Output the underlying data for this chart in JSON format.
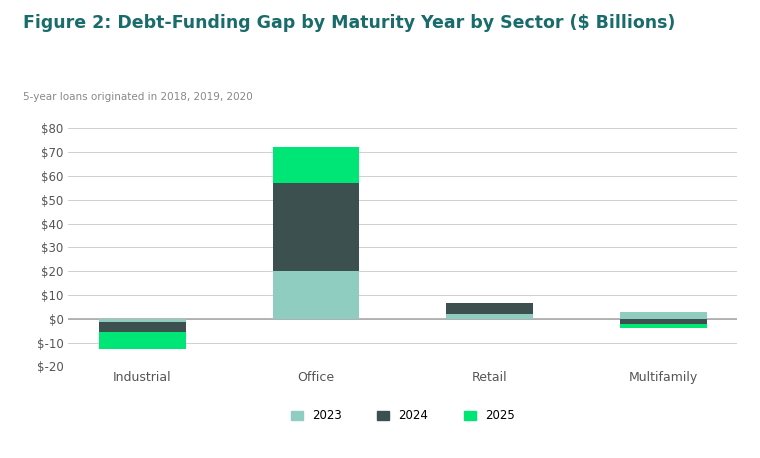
{
  "title": "Figure 2: Debt-Funding Gap by Maturity Year by Sector ($ Billions)",
  "subtitle": "5-year loans originated in 2018, 2019, 2020",
  "categories": [
    "Industrial",
    "Office",
    "Retail",
    "Multifamily"
  ],
  "series": {
    "2023": [
      -1.5,
      20.0,
      2.0,
      3.0
    ],
    "2024": [
      -4.0,
      37.0,
      4.5,
      -2.0
    ],
    "2025": [
      -7.0,
      15.0,
      0.0,
      -2.0
    ]
  },
  "colors": {
    "2023": "#8ecdc0",
    "2024": "#3d5050",
    "2025": "#00e676"
  },
  "ylim": [
    -20,
    80
  ],
  "yticks": [
    -20,
    -10,
    0,
    10,
    20,
    30,
    40,
    50,
    60,
    70,
    80
  ],
  "background_color": "#ffffff",
  "title_color": "#1a6b6b",
  "subtitle_color": "#888888",
  "axis_color": "#d0d0d0",
  "tick_label_color": "#555555",
  "bar_width": 0.5,
  "legend_labels": [
    "2023",
    "2024",
    "2025"
  ]
}
